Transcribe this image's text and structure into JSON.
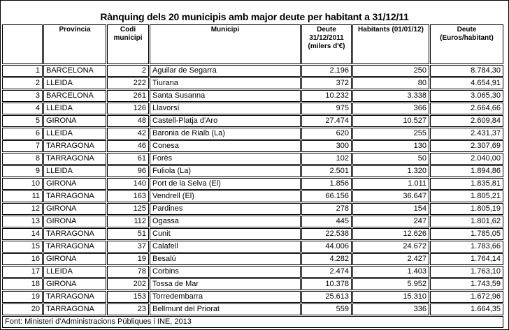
{
  "title": "Rànquing dels 20 municipis amb major deute per habitant a 31/12/11",
  "colors": {
    "border": "#000000",
    "background": "#ffffff",
    "text": "#000000"
  },
  "table": {
    "columns": [
      "",
      "Província",
      "Codi municipi",
      "Municipi",
      "Deute 31/12/2011 (milers d'€)",
      "Habitants (01/01/12)",
      "Deute (Euros/habitant)"
    ],
    "rows": [
      [
        "1",
        "BARCELONA",
        "2",
        "Aguilar de Segarra",
        "2.196",
        "250",
        "8.784,30"
      ],
      [
        "2",
        "LLEIDA",
        "222",
        "Tiurana",
        "372",
        "80",
        "4.654,91"
      ],
      [
        "3",
        "BARCELONA",
        "261",
        "Santa Susanna",
        "10.232",
        "3.338",
        "3.065,30"
      ],
      [
        "4",
        "LLEIDA",
        "126",
        "Llavorsí",
        "975",
        "366",
        "2.664,66"
      ],
      [
        "5",
        "GIRONA",
        "48",
        "Castell-Platja d'Aro",
        "27.474",
        "10.527",
        "2.609,84"
      ],
      [
        "6",
        "LLEIDA",
        "42",
        "Baronia de Rialb (La)",
        "620",
        "255",
        "2.431,37"
      ],
      [
        "7",
        "TARRAGONA",
        "46",
        "Conesa",
        "300",
        "130",
        "2.307,69"
      ],
      [
        "8",
        "TARRAGONA",
        "61",
        "Forès",
        "102",
        "50",
        "2.040,00"
      ],
      [
        "9",
        "LLEIDA",
        "96",
        "Fuliola (La)",
        "2.501",
        "1.320",
        "1.894,86"
      ],
      [
        "10",
        "GIRONA",
        "140",
        "Port de la Selva (El)",
        "1.856",
        "1.011",
        "1.835,81"
      ],
      [
        "11",
        "TARRAGONA",
        "163",
        "Vendrell (El)",
        "66.156",
        "36.647",
        "1.805,21"
      ],
      [
        "12",
        "GIRONA",
        "125",
        "Pardines",
        "278",
        "154",
        "1.805,19"
      ],
      [
        "13",
        "GIRONA",
        "112",
        "Ogassa",
        "445",
        "247",
        "1.801,62"
      ],
      [
        "14",
        "TARRAGONA",
        "51",
        "Cunit",
        "22.538",
        "12.626",
        "1.785,05"
      ],
      [
        "15",
        "TARRAGONA",
        "37",
        "Calafell",
        "44.006",
        "24.672",
        "1.783,66"
      ],
      [
        "16",
        "GIRONA",
        "19",
        "Besalú",
        "4.282",
        "2.427",
        "1.764,14"
      ],
      [
        "17",
        "LLEIDA",
        "78",
        "Corbins",
        "2.474",
        "1.403",
        "1.763,10"
      ],
      [
        "18",
        "GIRONA",
        "202",
        "Tossa de Mar",
        "10.378",
        "5.952",
        "1.743,59"
      ],
      [
        "19",
        "TARRAGONA",
        "153",
        "Torredembarra",
        "25.613",
        "15.310",
        "1.672,96"
      ],
      [
        "20",
        "TARRAGONA",
        "23",
        "Bellmunt del Priorat",
        "559",
        "336",
        "1.664,35"
      ]
    ],
    "column_alignments": [
      "right",
      "left",
      "right",
      "left",
      "right",
      "right",
      "right"
    ]
  },
  "footer": {
    "source": "Font: Ministeri d'Administracions Públiques i INE, 2013"
  }
}
